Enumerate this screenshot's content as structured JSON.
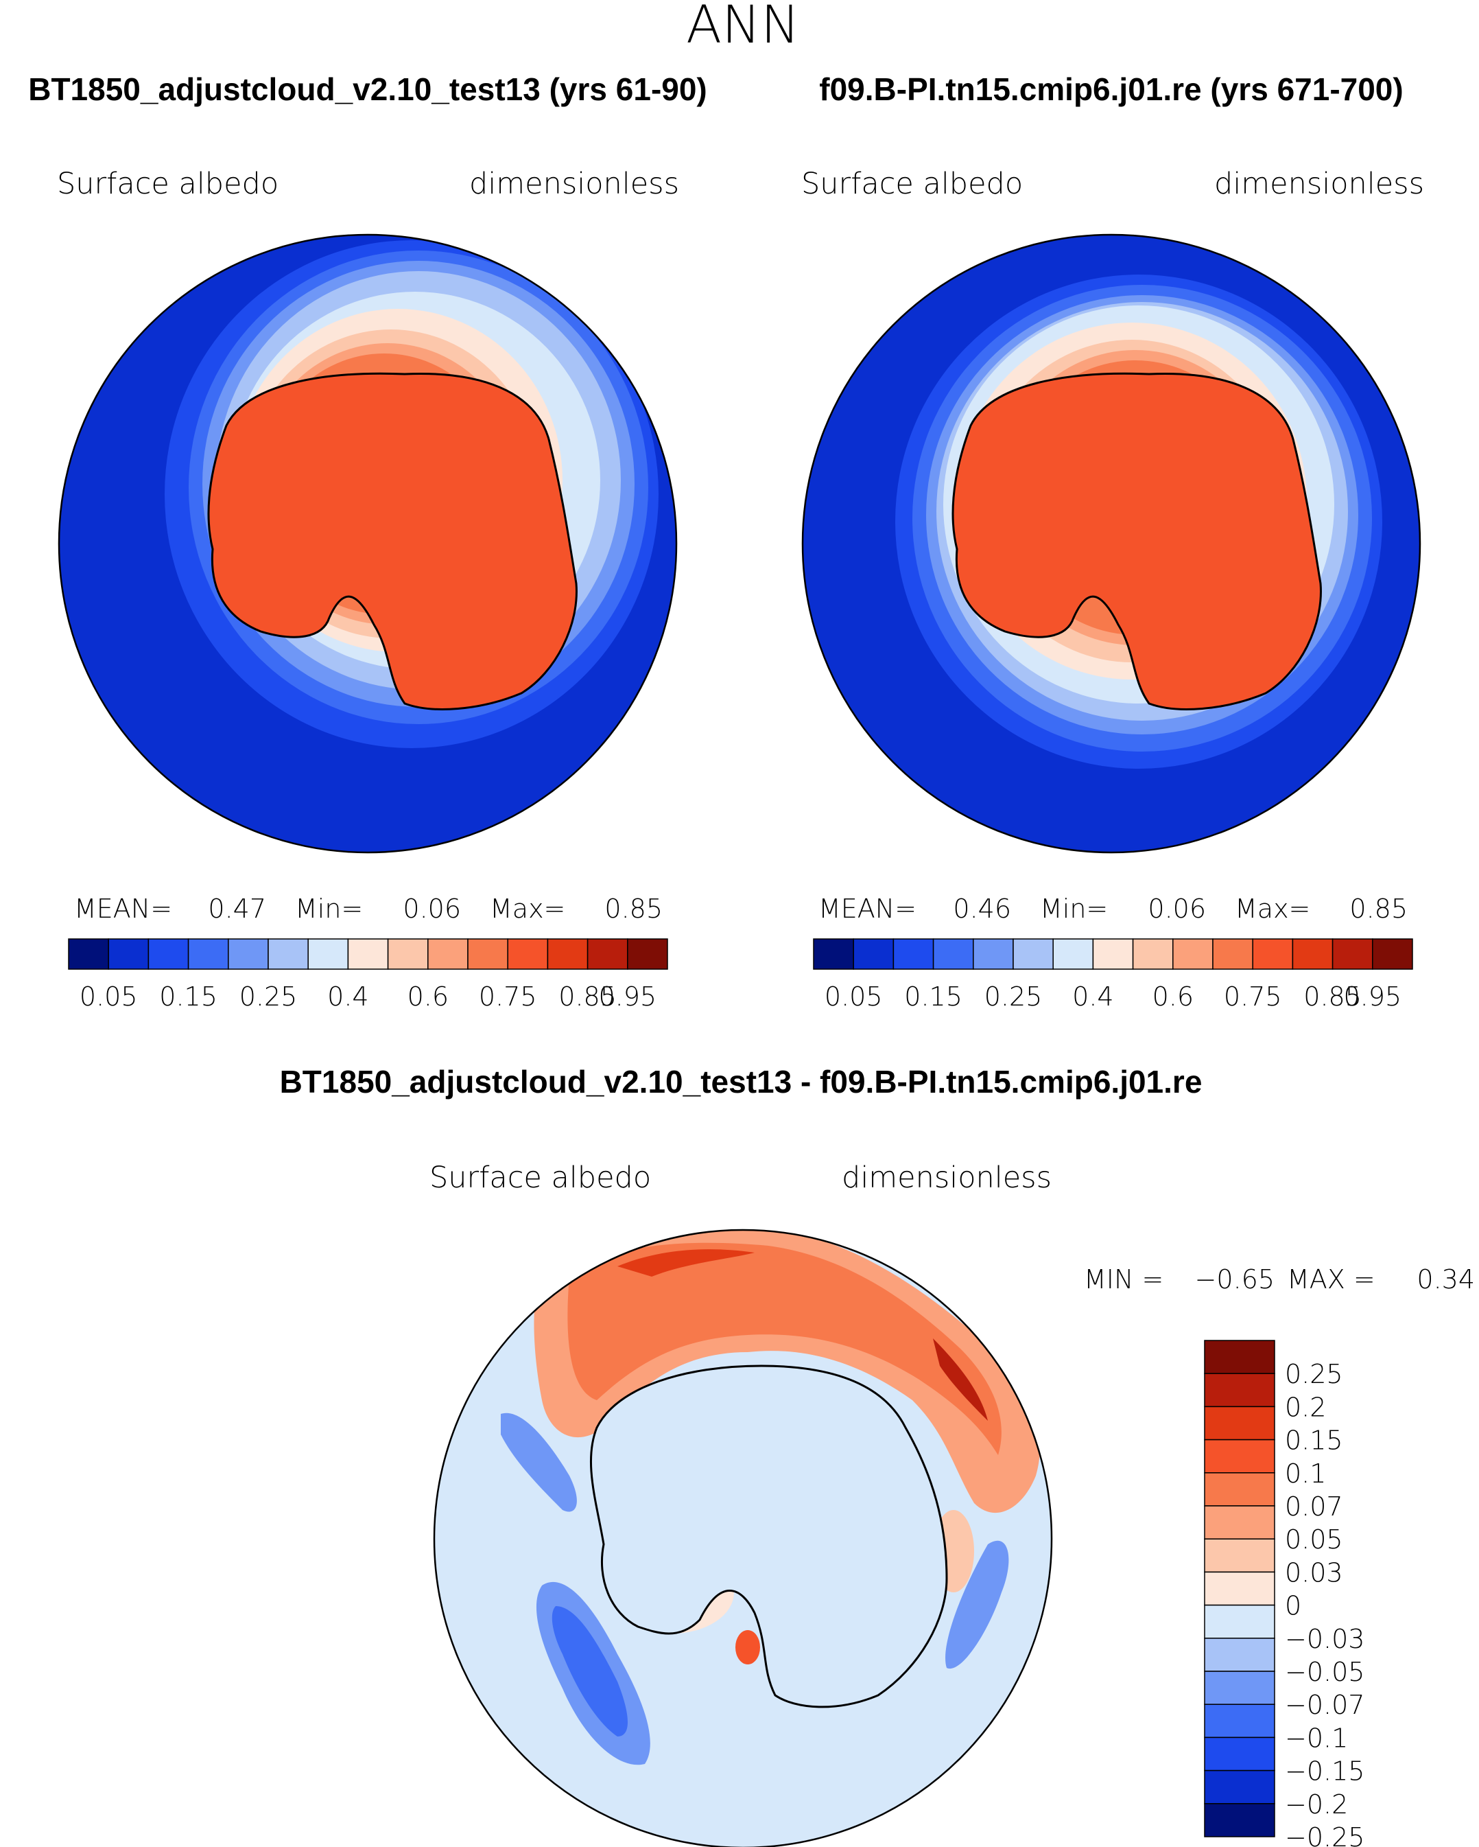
{
  "page_title": "ANN",
  "colors": {
    "land_abs": "#ff5724",
    "ocean_abs": "#0a2fd0",
    "diff_neutral": "#d6e8fa",
    "coast": "#000000"
  },
  "chart_data": [
    {
      "type": "heatmap",
      "title": "BT1850_adjustcloud_v2.10_test13 (yrs 61-90)",
      "variable": "Surface albedo",
      "units": "dimensionless",
      "stats": {
        "mean_label": "MEAN=",
        "mean": "0.47",
        "min_label": "Min=",
        "min": "0.06",
        "max_label": "Max=",
        "max": "0.85"
      },
      "colorbar": {
        "colors": [
          "#00107a",
          "#0a2fd0",
          "#1e4bee",
          "#3c6cf5",
          "#6f97f6",
          "#a8c3f7",
          "#d6e8fa",
          "#fde6d9",
          "#fcc7ab",
          "#fba17b",
          "#f7794b",
          "#f5532a",
          "#e23a14",
          "#b81e0c",
          "#7e0d05"
        ],
        "tick_labels": [
          "0.05",
          "0.15",
          "0.25",
          "0.4",
          "0.6",
          "0.75",
          "0.85",
          "0.95"
        ]
      }
    },
    {
      "type": "heatmap",
      "title": "f09.B-PI.tn15.cmip6.j01.re (yrs 671-700)",
      "variable": "Surface albedo",
      "units": "dimensionless",
      "stats": {
        "mean_label": "MEAN=",
        "mean": "0.46",
        "min_label": "Min=",
        "min": "0.06",
        "max_label": "Max=",
        "max": "0.85"
      },
      "colorbar": {
        "colors": [
          "#00107a",
          "#0a2fd0",
          "#1e4bee",
          "#3c6cf5",
          "#6f97f6",
          "#a8c3f7",
          "#d6e8fa",
          "#fde6d9",
          "#fcc7ab",
          "#fba17b",
          "#f7794b",
          "#f5532a",
          "#e23a14",
          "#b81e0c",
          "#7e0d05"
        ],
        "tick_labels": [
          "0.05",
          "0.15",
          "0.25",
          "0.4",
          "0.6",
          "0.75",
          "0.85",
          "0.95"
        ]
      }
    },
    {
      "type": "heatmap",
      "title": "BT1850_adjustcloud_v2.10_test13 - f09.B-PI.tn15.cmip6.j01.re",
      "variable": "Surface albedo",
      "units": "dimensionless",
      "stats": {
        "min_label": "MIN =",
        "min": "−0.65",
        "max_label": "MAX =",
        "max": "0.34"
      },
      "colorbar": {
        "colors": [
          "#7e0d05",
          "#b81e0c",
          "#e23a14",
          "#f5532a",
          "#f7794b",
          "#fba17b",
          "#fcc7ab",
          "#fde6d9",
          "#d6e8fa",
          "#a8c3f7",
          "#6f97f6",
          "#3c6cf5",
          "#1e4bee",
          "#0a2fd0",
          "#00107a"
        ],
        "tick_labels": [
          "0.25",
          "0.2",
          "0.15",
          "0.1",
          "0.07",
          "0.05",
          "0.03",
          "0",
          "−0.03",
          "−0.05",
          "−0.07",
          "−0.1",
          "−0.15",
          "−0.2",
          "−0.25"
        ]
      }
    }
  ]
}
